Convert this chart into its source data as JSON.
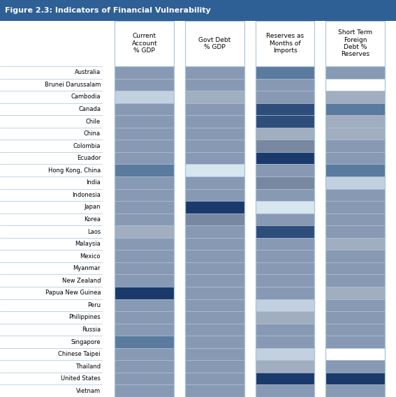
{
  "title": "Figure 2.3: Indicators of Financial Vulnerability",
  "title_bg": "#2E6096",
  "title_color": "white",
  "countries": [
    "Australia",
    "Brunei Darussalam",
    "Cambodia",
    "Canada",
    "Chile",
    "China",
    "Colombia",
    "Ecuador",
    "Hong Kong, China",
    "India",
    "Indonesia",
    "Japan",
    "Korea",
    "Laos",
    "Malaysia",
    "Mexico",
    "Myanmar",
    "New Zealand",
    "Papua New Guinea",
    "Peru",
    "Philippines",
    "Russia",
    "Singapore",
    "Chinese Taipei",
    "Thailand",
    "United States",
    "Vietnam"
  ],
  "col_keys": [
    "ca",
    "gd",
    "rm",
    "st"
  ],
  "col_headers": [
    "Current\nAccount\n% GDP",
    "Govt Debt\n% GDP",
    "Reserves as\nMonths of\nImports",
    "Short Term\nForeign\nDebt %\nReserves"
  ],
  "col_colors": {
    "ca": [
      "#8899B4",
      "#8899B4",
      "#C2D0E0",
      "#8899B4",
      "#8899B4",
      "#8899B4",
      "#8899B4",
      "#8899B4",
      "#5A7A9E",
      "#8899B4",
      "#8899B4",
      "#8899B4",
      "#8899B4",
      "#A0AEC0",
      "#8899B4",
      "#8899B4",
      "#8899B4",
      "#8899B4",
      "#1B3A6B",
      "#8899B4",
      "#8899B4",
      "#8899B4",
      "#5A7A9E",
      "#8899B4",
      "#8899B4",
      "#8899B4",
      "#8899B4"
    ],
    "gd": [
      "#8899B4",
      "#8899B4",
      "#A0AEC0",
      "#8899B4",
      "#8899B4",
      "#8899B4",
      "#8899B4",
      "#8899B4",
      "#D8E6F0",
      "#8899B4",
      "#8899B4",
      "#1B3A6B",
      "#7888A0",
      "#8899B4",
      "#8899B4",
      "#8899B4",
      "#8899B4",
      "#8899B4",
      "#8899B4",
      "#8899B4",
      "#8899B4",
      "#8899B4",
      "#8899B4",
      "#8899B4",
      "#8899B4",
      "#8899B4",
      "#8899B4"
    ],
    "rm": [
      "#5A7A9E",
      "#8899B4",
      "#8899B4",
      "#2E4D7B",
      "#2E4D7B",
      "#A0AEC0",
      "#7888A0",
      "#1B3A6B",
      "#8899B4",
      "#7888A0",
      "#8899B4",
      "#D8E6F0",
      "#8899B4",
      "#2E4D7B",
      "#8899B4",
      "#8899B4",
      "#8899B4",
      "#8899B4",
      "#8899B4",
      "#C2D0E0",
      "#A0AEC0",
      "#8899B4",
      "#8899B4",
      "#C2D0E0",
      "#A0AEC0",
      "#1B3A6B",
      "#8899B4"
    ],
    "st": [
      "#8899B4",
      "#FFFFFF",
      "#A0AEC0",
      "#5A7A9E",
      "#A0AEC0",
      "#A0AEC0",
      "#8899B4",
      "#8899B4",
      "#5A7A9E",
      "#C2D0E0",
      "#8899B4",
      "#8899B4",
      "#8899B4",
      "#8899B4",
      "#A0AEC0",
      "#8899B4",
      "#8899B4",
      "#8899B4",
      "#A0AEC0",
      "#8899B4",
      "#8899B4",
      "#8899B4",
      "#8899B4",
      "#FFFFFF",
      "#8899B4",
      "#1B3A6B",
      "#8899B4"
    ]
  },
  "bg_color": "#FFFFFF",
  "border_color": "#A8C4D8",
  "label_color": "#000000",
  "header_color": "#000000"
}
